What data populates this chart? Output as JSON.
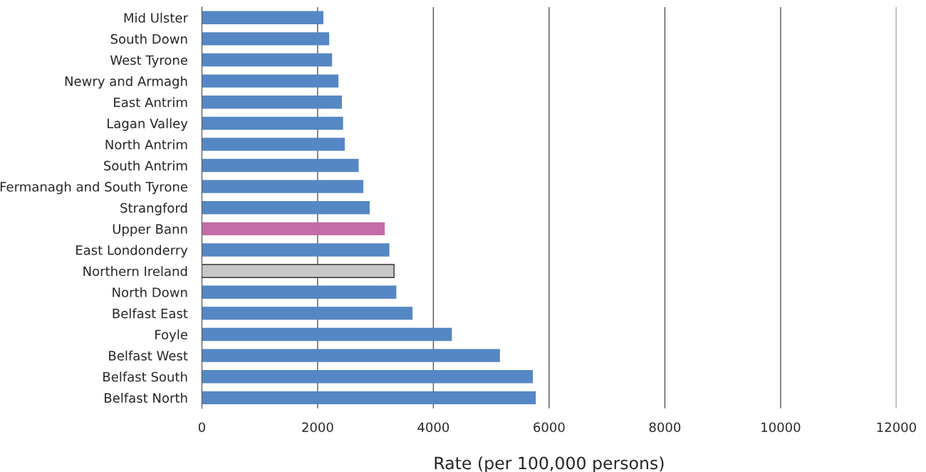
{
  "chart_data": {
    "type": "bar",
    "orientation": "horizontal",
    "xlabel": "Rate (per 100,000 persons)",
    "categories": [
      "Mid Ulster",
      "South Down",
      "West Tyrone",
      "Newry and Armagh",
      "East Antrim",
      "Lagan Valley",
      "North Antrim",
      "South Antrim",
      "Fermanagh and South Tyrone",
      "Strangford",
      "Upper Bann",
      "East Londonderry",
      "Northern Ireland",
      "North Down",
      "Belfast East",
      "Foyle",
      "Belfast West",
      "Belfast South",
      "Belfast North"
    ],
    "values": [
      2100,
      2200,
      2250,
      2360,
      2420,
      2440,
      2470,
      2710,
      2790,
      2900,
      3160,
      3240,
      3320,
      3360,
      3640,
      4320,
      5150,
      5720,
      5770
    ],
    "colors": [
      "#5687c5",
      "#5687c5",
      "#5687c5",
      "#5687c5",
      "#5687c5",
      "#5687c5",
      "#5687c5",
      "#5687c5",
      "#5687c5",
      "#5687c5",
      "#c36ca8",
      "#5687c5",
      "#c6c7c9",
      "#5687c5",
      "#5687c5",
      "#5687c5",
      "#5687c5",
      "#5687c5",
      "#5687c5"
    ],
    "xlim": [
      0,
      12000
    ],
    "xticks": [
      0,
      2000,
      4000,
      6000,
      8000,
      10000,
      12000
    ],
    "grid": "x",
    "legend": false
  }
}
